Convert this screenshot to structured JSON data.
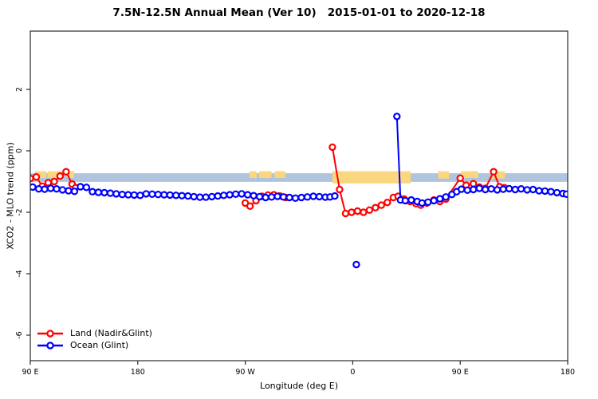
{
  "chart_data": {
    "type": "line",
    "title": "7.5N-12.5N Annual Mean (Ver 10)   2015-01-01 to 2020-12-18",
    "xlabel": "Longitude (deg E)",
    "ylabel": "XCO2 - MLO trend (ppm)",
    "x_axis": {
      "note": "longitude wraps eastward from 90E around the globe to 180",
      "range_deg": [
        90,
        540
      ],
      "ticks": [
        {
          "lon": 90,
          "label": "90 E"
        },
        {
          "lon": 180,
          "label": "180"
        },
        {
          "lon": 270,
          "label": "90 W"
        },
        {
          "lon": 360,
          "label": "0"
        },
        {
          "lon": 450,
          "label": "90 E"
        },
        {
          "lon": 540,
          "label": "180"
        }
      ]
    },
    "y_axis": {
      "range_ppm": [
        -6.8,
        3.9
      ],
      "ticks": [
        {
          "v": 2,
          "label": "2"
        },
        {
          "v": 0,
          "label": "0"
        },
        {
          "v": -2,
          "label": "-2"
        },
        {
          "v": -4,
          "label": "-4"
        },
        {
          "v": -6,
          "label": "-6"
        }
      ]
    },
    "background_bands": {
      "ocean_strip": {
        "color": "#B0C4DE",
        "v_top": -0.73,
        "v_bottom": -1.01
      },
      "land_strip_color": "#FAD77E",
      "land_patches": [
        {
          "lon_start": 94,
          "lon_end": 103.5,
          "coverage": 0.55
        },
        {
          "lon_start": 104.5,
          "lon_end": 117,
          "coverage": 0.55
        },
        {
          "lon_start": 120.5,
          "lon_end": 126.5,
          "coverage": 0.55
        },
        {
          "lon_start": 273.5,
          "lon_end": 279.5,
          "coverage": 0.55
        },
        {
          "lon_start": 281.5,
          "lon_end": 292,
          "coverage": 0.55
        },
        {
          "lon_start": 294.5,
          "lon_end": 303.5,
          "coverage": 0.55
        },
        {
          "lon_start": 343,
          "lon_end": 408.5,
          "coverage": 1.0
        },
        {
          "lon_start": 431.5,
          "lon_end": 440.5,
          "coverage": 0.6
        },
        {
          "lon_start": 450.5,
          "lon_end": 465,
          "coverage": 0.55
        },
        {
          "lon_start": 476.5,
          "lon_end": 487.5,
          "coverage": 0.6
        }
      ]
    },
    "legend": [
      {
        "label": "Land (Nadir&Glint)",
        "color": "#FF0000"
      },
      {
        "label": "Ocean (Glint)",
        "color": "#0000FF"
      }
    ],
    "series": [
      {
        "name": "Land (Nadir&Glint)",
        "color": "#FF0000",
        "marker": "open-circle",
        "points": [
          [
            90,
            -0.9
          ],
          [
            95,
            -0.85
          ],
          [
            100,
            -1.15
          ],
          [
            105,
            -1.04
          ],
          [
            110,
            -1.0
          ],
          [
            115,
            -0.82
          ],
          [
            120,
            -0.68
          ],
          [
            125,
            -1.08
          ],
          [
            128,
            -1.2
          ],
          null,
          [
            270,
            -1.7
          ],
          [
            274,
            -1.8
          ],
          [
            279,
            -1.62
          ],
          [
            284,
            -1.48
          ],
          [
            289,
            -1.44
          ],
          [
            294,
            -1.43
          ],
          [
            299,
            -1.47
          ],
          [
            304,
            -1.52
          ],
          null,
          [
            343,
            0.12
          ],
          [
            349,
            -1.26
          ],
          [
            354,
            -2.04
          ],
          [
            359,
            -2.0
          ],
          [
            364,
            -1.96
          ],
          [
            369,
            -2.0
          ],
          [
            374,
            -1.93
          ],
          [
            379,
            -1.85
          ],
          [
            384,
            -1.77
          ],
          [
            389,
            -1.68
          ],
          [
            394,
            -1.52
          ],
          [
            398,
            -1.48
          ],
          [
            403,
            -1.57
          ],
          [
            408,
            -1.65
          ],
          [
            413,
            -1.72
          ],
          [
            417,
            -1.77
          ],
          [
            422,
            -1.7
          ],
          [
            428,
            -1.6
          ],
          [
            433,
            -1.65
          ],
          [
            438,
            -1.57
          ],
          [
            450,
            -0.89
          ],
          [
            455,
            -1.12
          ],
          [
            461,
            -1.07
          ],
          [
            466,
            -1.18
          ],
          [
            471,
            -1.22
          ],
          [
            478,
            -0.68
          ],
          [
            483,
            -1.17
          ],
          [
            487,
            -1.2
          ]
        ]
      },
      {
        "name": "Ocean (Glint)",
        "color": "#0000FF",
        "marker": "open-circle",
        "points": [
          [
            88,
            -1.2
          ],
          [
            92,
            -1.18
          ],
          [
            97,
            -1.24
          ],
          [
            102,
            -1.25
          ],
          [
            107,
            -1.22
          ],
          [
            112,
            -1.24
          ],
          [
            117,
            -1.27
          ],
          [
            122,
            -1.3
          ],
          [
            127,
            -1.32
          ],
          [
            132,
            -1.17
          ],
          [
            137,
            -1.19
          ],
          [
            142,
            -1.33
          ],
          [
            147,
            -1.35
          ],
          [
            152,
            -1.36
          ],
          [
            157,
            -1.38
          ],
          [
            162,
            -1.4
          ],
          [
            167,
            -1.42
          ],
          [
            172,
            -1.43
          ],
          [
            177,
            -1.44
          ],
          [
            182,
            -1.45
          ],
          [
            187,
            -1.4
          ],
          [
            192,
            -1.41
          ],
          [
            197,
            -1.42
          ],
          [
            202,
            -1.43
          ],
          [
            207,
            -1.44
          ],
          [
            212,
            -1.45
          ],
          [
            217,
            -1.46
          ],
          [
            222,
            -1.47
          ],
          [
            227,
            -1.49
          ],
          [
            232,
            -1.51
          ],
          [
            237,
            -1.51
          ],
          [
            242,
            -1.49
          ],
          [
            247,
            -1.47
          ],
          [
            252,
            -1.45
          ],
          [
            257,
            -1.43
          ],
          [
            262,
            -1.41
          ],
          [
            267,
            -1.4
          ],
          [
            272,
            -1.43
          ],
          [
            277,
            -1.46
          ],
          [
            282,
            -1.49
          ],
          [
            287,
            -1.52
          ],
          [
            292,
            -1.5
          ],
          [
            297,
            -1.48
          ],
          [
            302,
            -1.5
          ],
          [
            307,
            -1.52
          ],
          [
            312,
            -1.54
          ],
          [
            317,
            -1.52
          ],
          [
            322,
            -1.5
          ],
          [
            327,
            -1.48
          ],
          [
            332,
            -1.49
          ],
          [
            337,
            -1.51
          ],
          [
            341,
            -1.5
          ],
          [
            345,
            -1.47
          ],
          null,
          [
            363,
            -3.7
          ],
          null,
          [
            397,
            1.12
          ],
          [
            400,
            -1.6
          ],
          [
            404,
            -1.62
          ],
          [
            409,
            -1.6
          ],
          [
            414,
            -1.65
          ],
          [
            418,
            -1.7
          ],
          [
            423,
            -1.67
          ],
          [
            428,
            -1.62
          ],
          [
            433,
            -1.56
          ],
          [
            438,
            -1.5
          ],
          [
            443,
            -1.42
          ],
          [
            447,
            -1.33
          ],
          [
            451,
            -1.25
          ],
          [
            456,
            -1.28
          ],
          [
            461,
            -1.26
          ],
          [
            466,
            -1.22
          ],
          [
            471,
            -1.26
          ],
          [
            476,
            -1.24
          ],
          [
            481,
            -1.27
          ],
          [
            486,
            -1.25
          ],
          [
            491,
            -1.23
          ],
          [
            496,
            -1.26
          ],
          [
            501,
            -1.24
          ],
          [
            506,
            -1.27
          ],
          [
            511,
            -1.26
          ],
          [
            516,
            -1.3
          ],
          [
            521,
            -1.31
          ],
          [
            526,
            -1.33
          ],
          [
            531,
            -1.36
          ],
          [
            536,
            -1.39
          ],
          [
            539,
            -1.41
          ]
        ]
      }
    ],
    "annotations": {
      "land_spike": {
        "lon": 343,
        "value": 0.12
      },
      "ocean_spike": {
        "lon": 397,
        "value": 1.12
      },
      "ocean_low_outlier": {
        "lon": 363,
        "value": -3.7
      }
    }
  }
}
